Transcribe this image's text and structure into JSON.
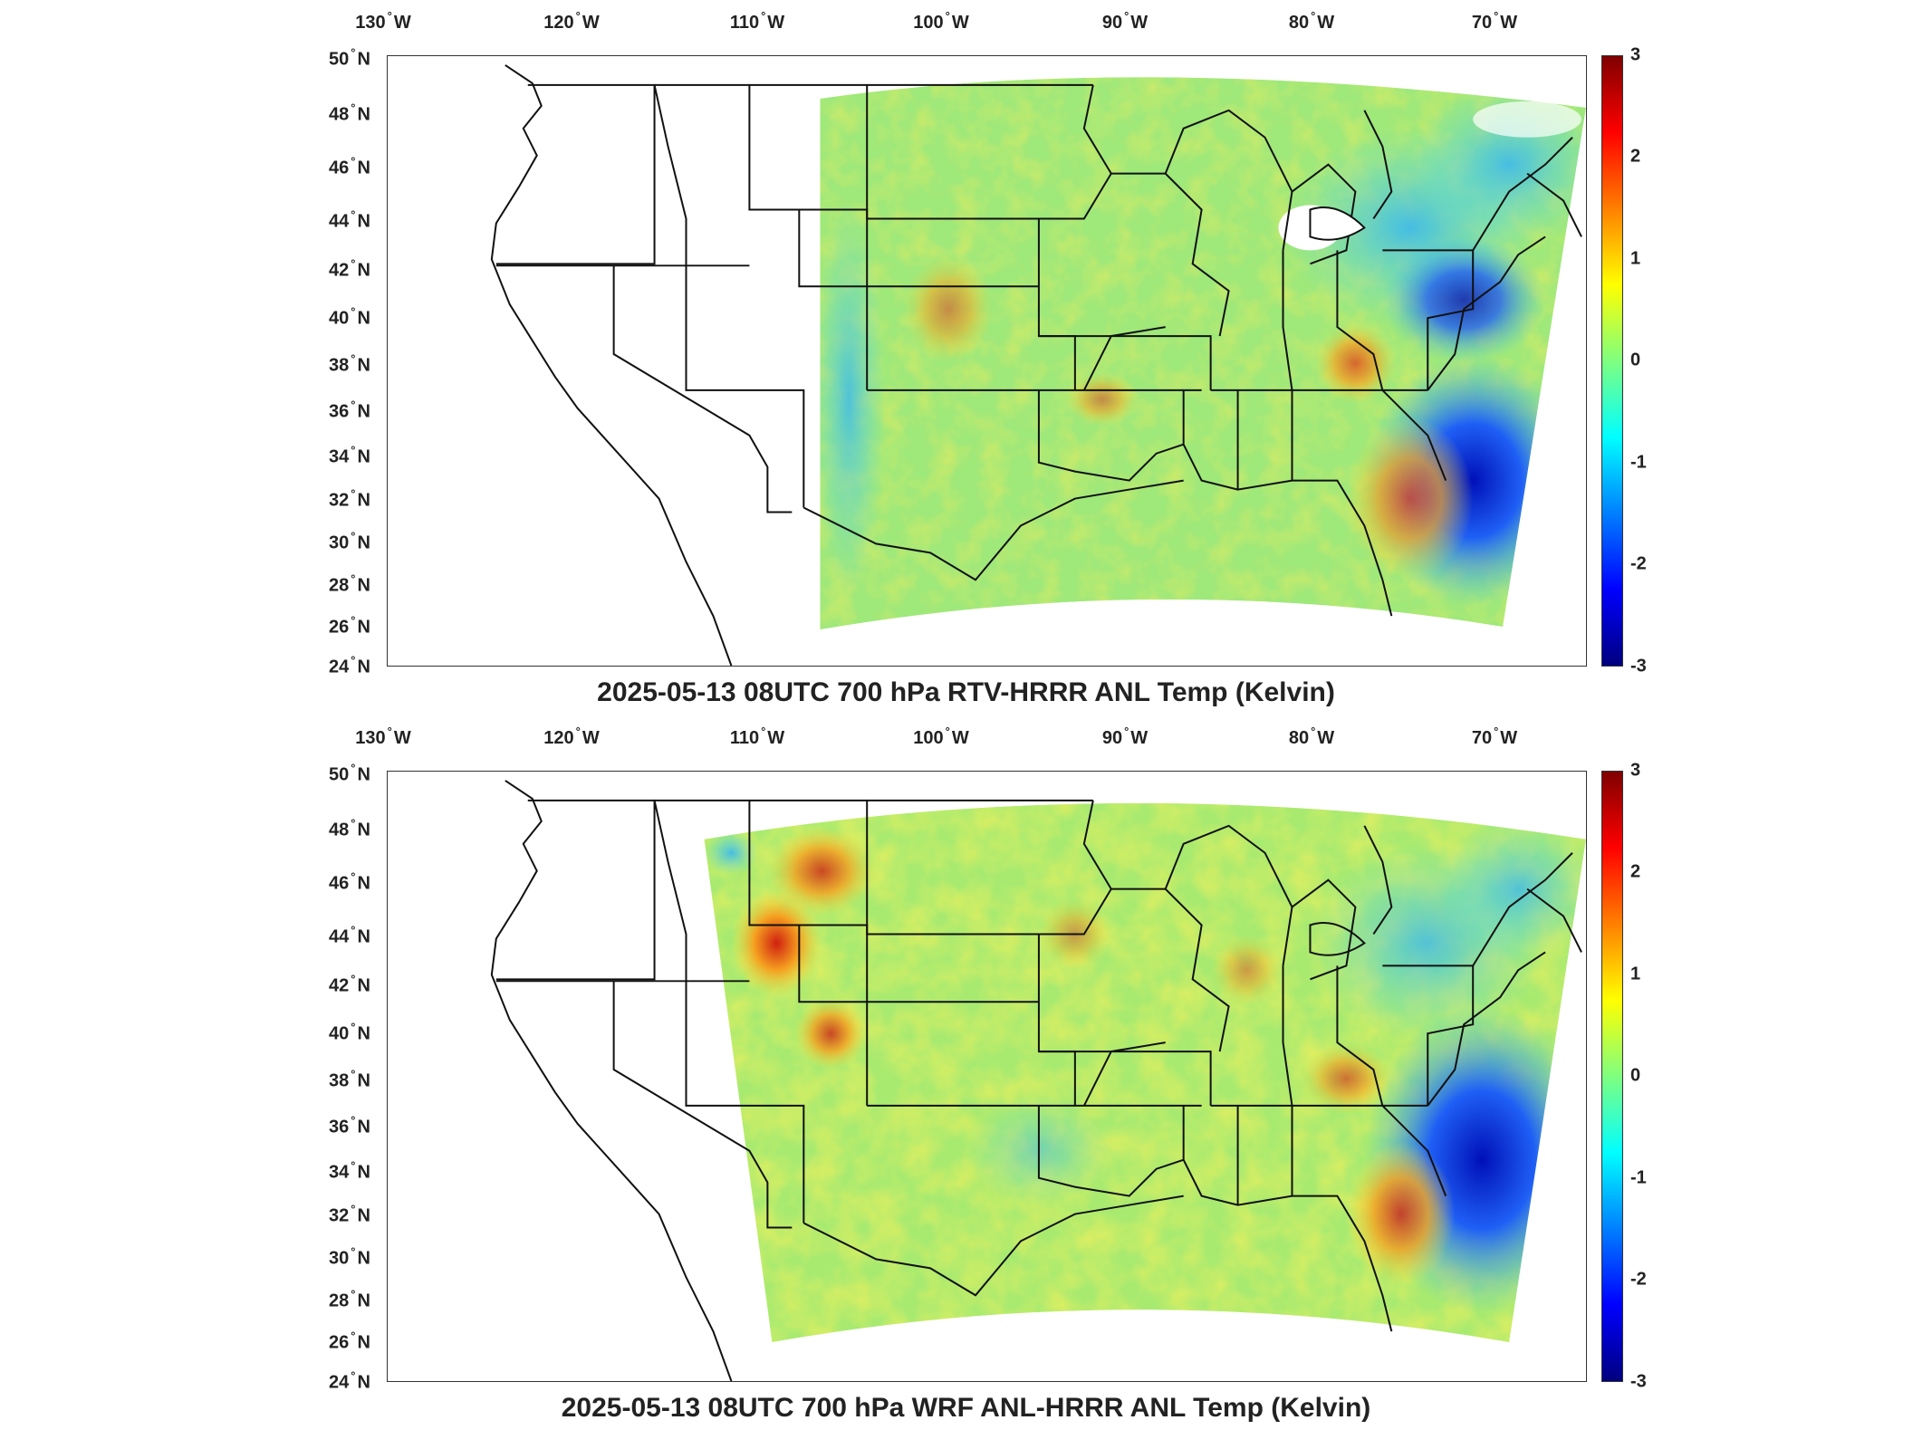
{
  "panels": [
    {
      "title": "2025-05-13 08UTC 700 hPa RTV-HRRR ANL Temp (Kelvin)",
      "lon_ticks": [
        "130",
        "120",
        "110",
        "100",
        "90",
        "80",
        "70"
      ],
      "lon_hemisphere": "W",
      "lat_ticks": [
        "50",
        "48",
        "46",
        "44",
        "42",
        "40",
        "38",
        "36",
        "34",
        "32",
        "30",
        "28",
        "26",
        "24"
      ],
      "lat_hemisphere": "N",
      "colorbar_ticks": [
        "3",
        "2",
        "1",
        "0",
        "-1",
        "-2",
        "-3"
      ],
      "colorbar_range": [
        -3,
        3
      ],
      "colormap": "jet"
    },
    {
      "title": "2025-05-13 08UTC 700 hPa WRF ANL-HRRR ANL Temp (Kelvin)",
      "lon_ticks": [
        "130",
        "120",
        "110",
        "100",
        "90",
        "80",
        "70"
      ],
      "lon_hemisphere": "W",
      "lat_ticks": [
        "50",
        "48",
        "46",
        "44",
        "42",
        "40",
        "38",
        "36",
        "34",
        "32",
        "30",
        "28",
        "26",
        "24"
      ],
      "lat_hemisphere": "N",
      "colorbar_ticks": [
        "3",
        "2",
        "1",
        "0",
        "-1",
        "-2",
        "-3"
      ],
      "colorbar_range": [
        -3,
        3
      ],
      "colormap": "jet"
    }
  ],
  "colors": {
    "field_base": "#9fe87a",
    "cold_anomaly": "#0a2fd8",
    "warm_anomaly": "#e8401a",
    "boundaries": "#111111"
  }
}
